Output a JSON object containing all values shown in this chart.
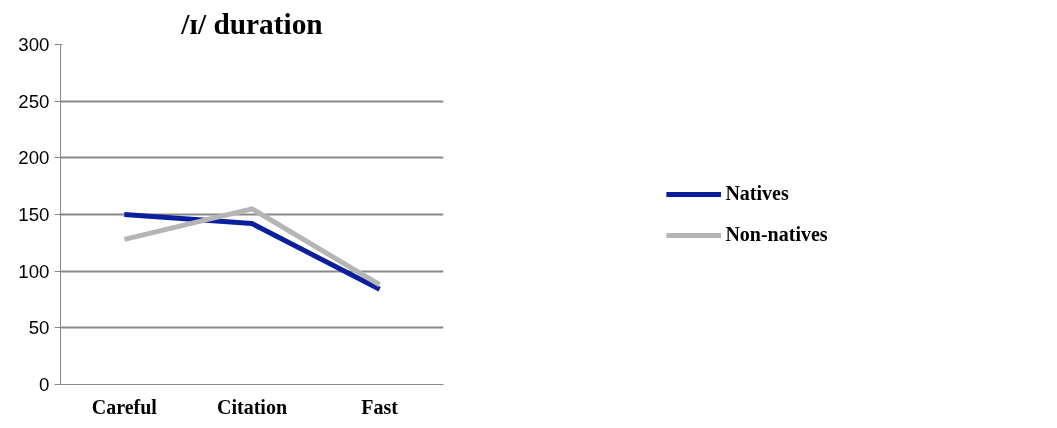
{
  "chart_data": {
    "type": "line",
    "title": "/ɪ/ duration",
    "categories": [
      "Careful",
      "Citation",
      "Fast"
    ],
    "series": [
      {
        "name": "Natives",
        "color": "#0a1f9e",
        "values": [
          150,
          142,
          84
        ]
      },
      {
        "name": "Non-natives",
        "color": "#b5b5b5",
        "values": [
          128,
          155,
          88
        ]
      }
    ],
    "ylim": [
      0,
      300
    ],
    "yticks": [
      0,
      50,
      100,
      150,
      200,
      250,
      300
    ],
    "grid": "y",
    "legend": "right",
    "marker": "none",
    "line_style": "solid"
  }
}
